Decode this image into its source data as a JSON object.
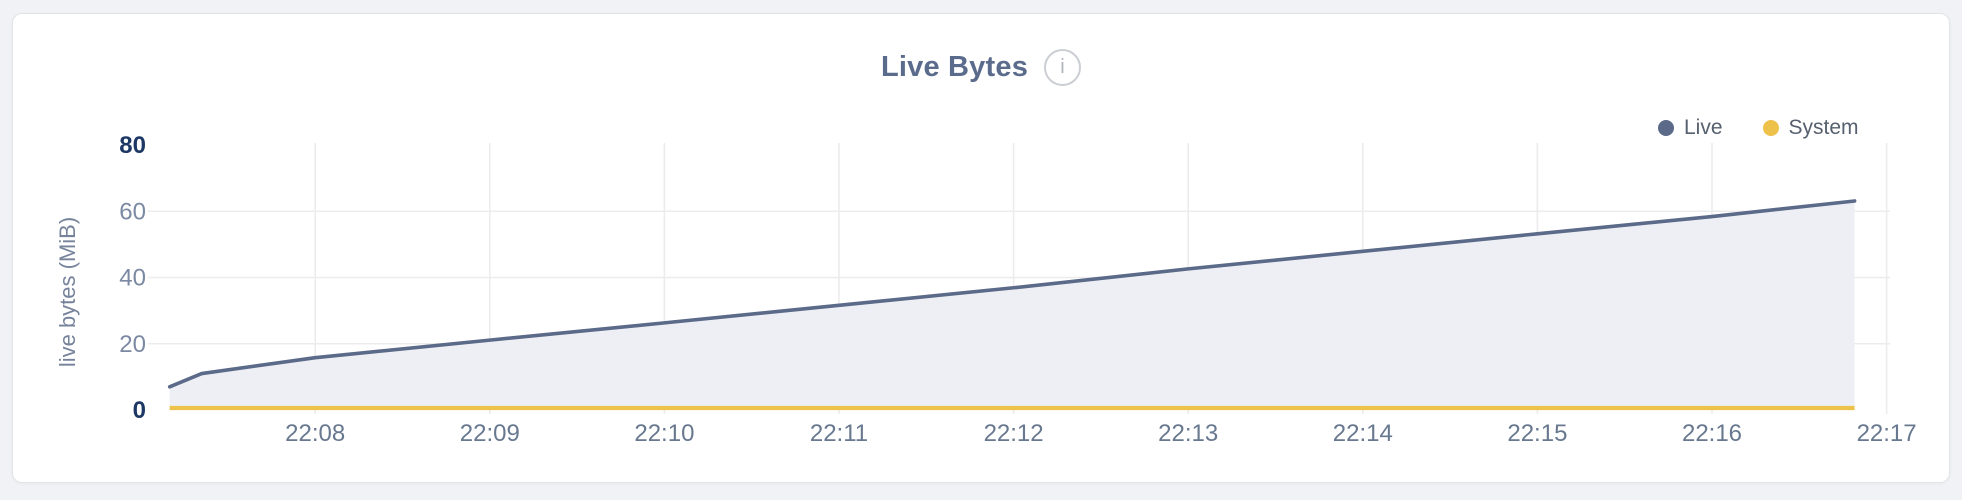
{
  "palette": {
    "page_background": "#f0f2f5",
    "card_background": "#ffffff",
    "card_border": "#e2e4e8",
    "title_color": "#5a6b8c",
    "grid_color": "#ececef",
    "axis_tick_color": "#7b89a3",
    "axis_tick_bold_color": "#1e3866",
    "x_tick_color": "#68788f",
    "live_color": "#5a6a88",
    "live_fill": "#edeff4",
    "system_color": "#eec24a"
  },
  "header": {
    "title": "Live Bytes",
    "info_glyph": "i"
  },
  "legend": {
    "items": [
      {
        "label": "Live",
        "color": "#5a6a88"
      },
      {
        "label": "System",
        "color": "#eec24a"
      }
    ]
  },
  "chart_data": {
    "type": "area",
    "title": "Live Bytes",
    "xlabel": "",
    "ylabel": "live bytes (MiB)",
    "ylim": [
      0,
      80
    ],
    "yticks": [
      0,
      20,
      40,
      60,
      80
    ],
    "yticks_bold": [
      0,
      80
    ],
    "xticks": [
      "22:08",
      "22:09",
      "22:10",
      "22:11",
      "22:12",
      "22:13",
      "22:14",
      "22:15",
      "22:16",
      "22:17"
    ],
    "grid": true,
    "legend_position": "top-right",
    "series": [
      {
        "name": "Live",
        "color": "#5a6a88",
        "fill": "#edeff4",
        "points": [
          [
            "22:07:10",
            7.0
          ],
          [
            "22:07:21",
            11.0
          ],
          [
            "22:08:00",
            15.8
          ],
          [
            "22:09:00",
            21.1
          ],
          [
            "22:10:00",
            26.3
          ],
          [
            "22:11:00",
            31.6
          ],
          [
            "22:12:00",
            36.9
          ],
          [
            "22:13:00",
            42.6
          ],
          [
            "22:14:00",
            47.9
          ],
          [
            "22:15:00",
            53.2
          ],
          [
            "22:16:00",
            58.4
          ],
          [
            "22:16:49",
            63.1
          ]
        ]
      },
      {
        "name": "System",
        "color": "#eec24a",
        "points": [
          [
            "22:07:10",
            0.6
          ],
          [
            "22:16:49",
            0.6
          ]
        ]
      }
    ]
  }
}
